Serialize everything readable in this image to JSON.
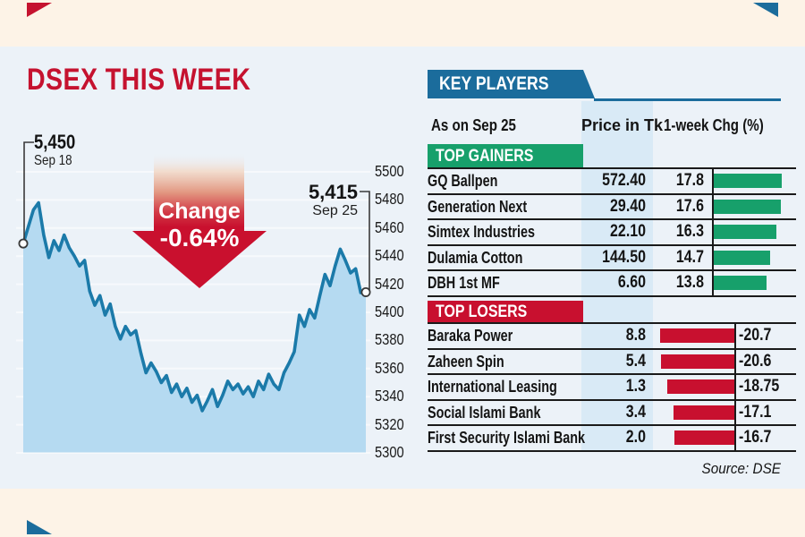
{
  "page": {
    "title": "DSEX THIS WEEK",
    "source_label": "Source: DSE"
  },
  "chart_data": {
    "type": "area",
    "title": "DSEX THIS WEEK",
    "start": {
      "label": "5,450",
      "date": "Sep 18",
      "value": 5450
    },
    "end": {
      "label": "5,415",
      "date": "Sep 25",
      "value": 5415
    },
    "change_label": "Change",
    "change_pct": "-0.64%",
    "ylim": [
      5300,
      5500
    ],
    "y_ticks": [
      5500,
      5480,
      5460,
      5440,
      5420,
      5400,
      5380,
      5360,
      5340,
      5320,
      5300
    ],
    "grid": "faint horizontal white lines",
    "series": [
      5449,
      5461,
      5473,
      5478,
      5455,
      5439,
      5451,
      5444,
      5455,
      5446,
      5440,
      5433,
      5437,
      5415,
      5405,
      5412,
      5398,
      5406,
      5390,
      5381,
      5390,
      5384,
      5387,
      5371,
      5357,
      5364,
      5358,
      5350,
      5355,
      5343,
      5349,
      5340,
      5346,
      5336,
      5341,
      5330,
      5337,
      5345,
      5333,
      5341,
      5351,
      5345,
      5349,
      5342,
      5347,
      5340,
      5351,
      5345,
      5356,
      5349,
      5345,
      5357,
      5364,
      5372,
      5398,
      5390,
      5402,
      5396,
      5412,
      5427,
      5419,
      5433,
      5445,
      5437,
      5428,
      5431,
      5414,
      5415
    ]
  },
  "key_players": {
    "banner": "KEY PLAYERS",
    "as_of": "As on Sep 25",
    "col_price": "Price in Tk",
    "col_chg": "1-week Chg (%)",
    "gainers": {
      "banner": "TOP GAINERS",
      "rows": [
        {
          "name": "GQ Ballpen",
          "price": "572.40",
          "chg": "17.8",
          "chg_value": 17.8
        },
        {
          "name": "Generation Next",
          "price": "29.40",
          "chg": "17.6",
          "chg_value": 17.6
        },
        {
          "name": "Simtex Industries",
          "price": "22.10",
          "chg": "16.3",
          "chg_value": 16.3
        },
        {
          "name": "Dulamia Cotton",
          "price": "144.50",
          "chg": "14.7",
          "chg_value": 14.7
        },
        {
          "name": "DBH 1st MF",
          "price": "6.60",
          "chg": "13.8",
          "chg_value": 13.8
        }
      ]
    },
    "losers": {
      "banner": "TOP LOSERS",
      "rows": [
        {
          "name": "Baraka Power",
          "price": "8.8",
          "chg": "-20.7",
          "chg_value": 20.7
        },
        {
          "name": "Zaheen Spin",
          "price": "5.4",
          "chg": "-20.6",
          "chg_value": 20.6
        },
        {
          "name": "International Leasing",
          "price": "1.3",
          "chg": "-18.75",
          "chg_value": 18.75
        },
        {
          "name": "Social Islami Bank",
          "price": "3.4",
          "chg": "-17.1",
          "chg_value": 17.1
        },
        {
          "name": "First Security Islami Bank",
          "price": "2.0",
          "chg": "-16.7",
          "chg_value": 16.7
        }
      ]
    }
  },
  "colors": {
    "cream_bg": "#fdf3e7",
    "card_bg": "#ecf2f8",
    "accent_red": "#c5122f",
    "arrow_red": "#c9102e",
    "banner_blue": "#1b6c9c",
    "gain_green": "#17a06b",
    "lose_red": "#c8102f",
    "line_blue": "#1b7aa9",
    "fill_blue": "#b5daf1",
    "stripe_blue": "#d9eaf6",
    "text": "#141414"
  }
}
